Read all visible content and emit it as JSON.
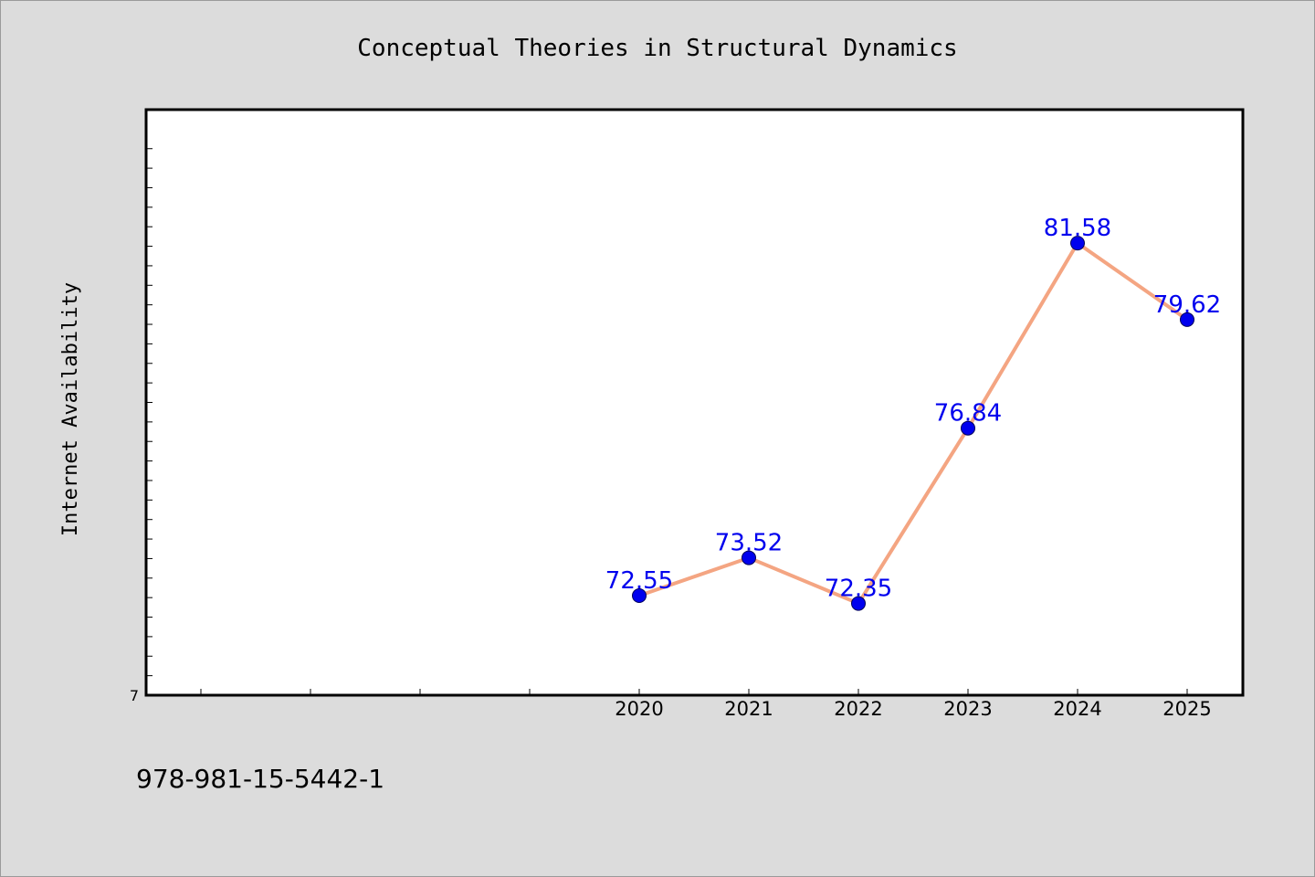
{
  "chart_data": {
    "type": "line",
    "title": "Conceptual Theories in Structural Dynamics",
    "xlabel": "",
    "ylabel": "Internet Availability",
    "x": [
      "2020",
      "2021",
      "2022",
      "2023",
      "2024",
      "2025"
    ],
    "x_axis_slots": [
      "",
      "",
      "",
      "",
      "2020",
      "2021",
      "2022",
      "2023",
      "2024",
      "2025"
    ],
    "series": [
      {
        "values": [
          72.55,
          73.52,
          72.35,
          76.84,
          81.58,
          79.62
        ],
        "labels": [
          "72.55",
          "73.52",
          "72.35",
          "76.84",
          "81.58",
          "79.62"
        ]
      }
    ],
    "ylim": [
      70.0,
      85.0
    ],
    "ytick_labels": [
      "7"
    ],
    "ytick_values": [
      70.0
    ],
    "grid": false,
    "line_color": "#f4a582",
    "marker_color": "#0000ee",
    "label_color": "#0000ee"
  },
  "footer": {
    "isbn": "978-981-15-5442-1"
  }
}
